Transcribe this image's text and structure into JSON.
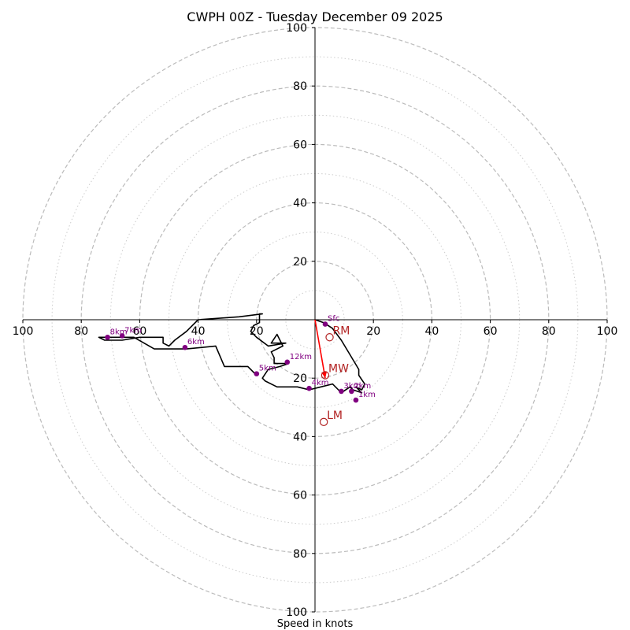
{
  "chart_data": {
    "type": "hodograph",
    "title": "CWPH 00Z - Tuesday December 09 2025",
    "xlabel": "Speed in knots",
    "range": [
      -100,
      100
    ],
    "ring_major": [
      20,
      40,
      60,
      80,
      100
    ],
    "ring_minor": [
      10,
      30,
      50,
      70,
      90
    ],
    "x_ticks": [
      "100",
      "80",
      "60",
      "40",
      "20",
      "20",
      "40",
      "60",
      "80",
      "100"
    ],
    "x_tick_values": [
      -100,
      -80,
      -60,
      -40,
      -20,
      20,
      40,
      60,
      80,
      100
    ],
    "y_ticks": [
      "100",
      "80",
      "60",
      "40",
      "20",
      "20",
      "40",
      "60",
      "80",
      "100"
    ],
    "y_tick_values": [
      100,
      80,
      60,
      40,
      20,
      -20,
      -40,
      -60,
      -80,
      -100
    ],
    "colors": {
      "trace": "#000000",
      "height_marker": "#800080",
      "motion": "#b22222",
      "shear_vector": "#ff0000",
      "ring_major": "#bbbbbb",
      "ring_minor": "#cccccc"
    },
    "trace": [
      [
        0,
        0
      ],
      [
        3,
        -1
      ],
      [
        6,
        -3
      ],
      [
        9,
        -7
      ],
      [
        12,
        -12
      ],
      [
        15,
        -17
      ],
      [
        15,
        -19
      ],
      [
        17,
        -22
      ],
      [
        16,
        -24
      ],
      [
        14,
        -23
      ],
      [
        16,
        -25
      ],
      [
        13,
        -24
      ],
      [
        12,
        -23
      ],
      [
        9,
        -25
      ],
      [
        8,
        -24
      ],
      [
        6,
        -22
      ],
      [
        2,
        -23
      ],
      [
        -2,
        -24
      ],
      [
        -6,
        -23
      ],
      [
        -13,
        -23
      ],
      [
        -17,
        -21
      ],
      [
        -18,
        -20
      ],
      [
        -16,
        -17
      ],
      [
        -12,
        -16
      ],
      [
        -9,
        -15
      ],
      [
        -14,
        -15
      ],
      [
        -14,
        -14
      ],
      [
        -14,
        -13
      ],
      [
        -15,
        -11
      ],
      [
        -11,
        -9
      ],
      [
        -12,
        -7
      ],
      [
        -13,
        -5
      ],
      [
        -15,
        -8
      ],
      [
        -10,
        -8
      ],
      [
        -16,
        -9
      ],
      [
        -20,
        -6
      ],
      [
        -22,
        -4
      ],
      [
        -21,
        -2
      ],
      [
        -19,
        -1
      ],
      [
        -19,
        2
      ],
      [
        -18,
        2
      ],
      [
        -26,
        1
      ],
      [
        -40,
        0
      ],
      [
        -44,
        -4
      ],
      [
        -48,
        -7
      ],
      [
        -50,
        -9
      ],
      [
        -52,
        -8
      ],
      [
        -52,
        -6
      ],
      [
        -60,
        -6
      ],
      [
        -66,
        -7
      ],
      [
        -72,
        -7
      ],
      [
        -74,
        -6
      ],
      [
        -62,
        -6
      ],
      [
        -55,
        -10
      ],
      [
        -55,
        -10
      ],
      [
        -44,
        -10
      ],
      [
        -34,
        -9
      ],
      [
        -31,
        -16
      ],
      [
        -23,
        -16
      ],
      [
        -20,
        -19
      ]
    ],
    "height_markers": [
      {
        "label": "Sfc",
        "u": 3.5,
        "v": -1.5
      },
      {
        "label": "1km",
        "u": 14,
        "v": -27.5
      },
      {
        "label": "2km",
        "u": 12.5,
        "v": -24.5
      },
      {
        "label": "3km",
        "u": 9,
        "v": -24.5
      },
      {
        "label": "4km",
        "u": -2,
        "v": -23.5
      },
      {
        "label": "5km",
        "u": -20,
        "v": -18.5
      },
      {
        "label": "6km",
        "u": -44.5,
        "v": -9.5
      },
      {
        "label": "7km",
        "u": -66,
        "v": -5.5
      },
      {
        "label": "8km",
        "u": -71,
        "v": -6
      },
      {
        "label": "12km",
        "u": -9.5,
        "v": -14.5
      }
    ],
    "motions": [
      {
        "label": "RM",
        "u": 5,
        "v": -6
      },
      {
        "label": "MW",
        "u": 3.5,
        "v": -19
      },
      {
        "label": "LM",
        "u": 3,
        "v": -35
      }
    ],
    "shear_vector": {
      "from": [
        0,
        0
      ],
      "to": [
        3.5,
        -20
      ]
    }
  }
}
